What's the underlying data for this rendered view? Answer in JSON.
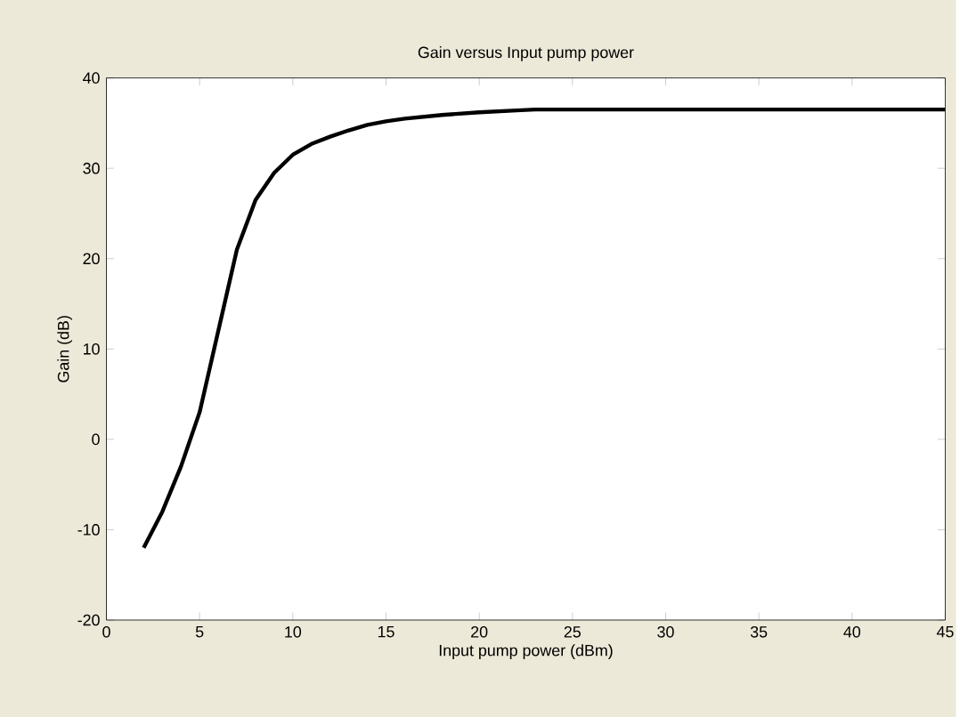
{
  "chart_data": {
    "type": "line",
    "title": "Gain versus Input pump power",
    "xlabel": "Input pump power (dBm)",
    "ylabel": "Gain (dB)",
    "xlim": [
      0,
      45
    ],
    "ylim": [
      -20,
      40
    ],
    "xticks": [
      0,
      5,
      10,
      15,
      20,
      25,
      30,
      35,
      40,
      45
    ],
    "yticks": [
      -20,
      -10,
      0,
      10,
      20,
      30,
      40
    ],
    "grid": false,
    "marker": "none",
    "line_style": "solid",
    "series": [
      {
        "color": "#000000",
        "x": [
          2,
          3,
          4,
          5,
          6,
          7,
          8,
          9,
          10,
          11,
          12,
          13,
          14,
          15,
          16,
          18,
          20,
          22,
          23,
          30,
          45
        ],
        "values": [
          -12,
          -8,
          -3,
          3,
          12,
          21,
          26.5,
          29.5,
          31.5,
          32.7,
          33.5,
          34.2,
          34.8,
          35.2,
          35.5,
          35.9,
          36.2,
          36.4,
          36.5,
          36.5,
          36.5
        ]
      }
    ]
  }
}
